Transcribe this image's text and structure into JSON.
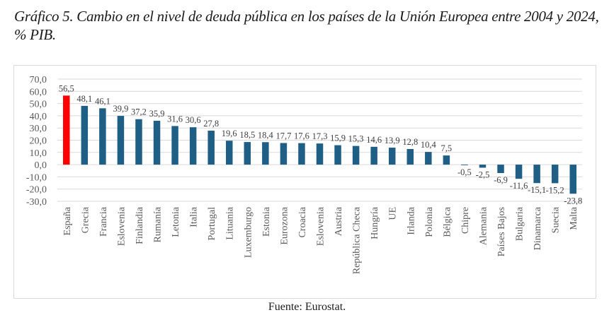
{
  "title": "Gráfico 5. Cambio en el nivel de deuda pública en los países de la Unión Europea entre 2004 y 2024, % PIB.",
  "source": "Fuente: Eurostat.",
  "colors": {
    "highlight": "#ff0000",
    "default": "#1f5f86",
    "grid": "#d9d9d9"
  },
  "chart_data": {
    "type": "bar",
    "title": "Cambio en el nivel de deuda pública en los países de la Unión Europea entre 2004 y 2024, % PIB",
    "xlabel": "",
    "ylabel": "",
    "ylim": [
      -30,
      70
    ],
    "yticks": [
      70,
      60,
      50,
      40,
      30,
      20,
      10,
      0,
      -10,
      -20,
      -30
    ],
    "ytick_labels": [
      "70,0",
      "60,0",
      "50,0",
      "40,0",
      "30,0",
      "20,0",
      "10,0",
      "0,0",
      "-10,0",
      "-20,0",
      "-30,0"
    ],
    "grid": true,
    "legend": "none",
    "highlighted_category": "España",
    "categories": [
      "España",
      "Grecia",
      "Francia",
      "Eslovenia",
      "Finlandia",
      "Rumanía",
      "Letonia",
      "Italia",
      "Portugal",
      "Lituania",
      "Luxemburgo",
      "Estonia",
      "Eurozona",
      "Croacia",
      "Eslovenia",
      "Austria",
      "República Checa",
      "Hungría",
      "UE",
      "Irlanda",
      "Polonia",
      "Bélgica",
      "Chipre",
      "Alemania",
      "Países Bajos",
      "Bulgaria",
      "Dinamarca",
      "Suecia",
      "Malta"
    ],
    "values": [
      56.5,
      48.1,
      46.1,
      39.9,
      37.2,
      35.9,
      31.6,
      30.6,
      27.8,
      19.6,
      18.5,
      18.4,
      17.7,
      17.6,
      17.3,
      15.9,
      15.3,
      14.6,
      13.9,
      12.8,
      10.4,
      7.5,
      -0.5,
      -2.5,
      -6.9,
      -11.6,
      -15.1,
      -15.2,
      -23.8
    ],
    "value_labels": [
      "56,5",
      "48,1",
      "46,1",
      "39,9",
      "37,2",
      "35,9",
      "31,6",
      "30,6",
      "27,8",
      "19,6",
      "18,5",
      "18,4",
      "17,7",
      "17,6",
      "17,3",
      "15,9",
      "15,3",
      "14,6",
      "13,9",
      "12,8",
      "10,4",
      "7,5",
      "-0,5",
      "-2,5",
      "-6,9",
      "-11,6",
      "-15,1",
      "-15,2",
      "-23,8"
    ]
  }
}
